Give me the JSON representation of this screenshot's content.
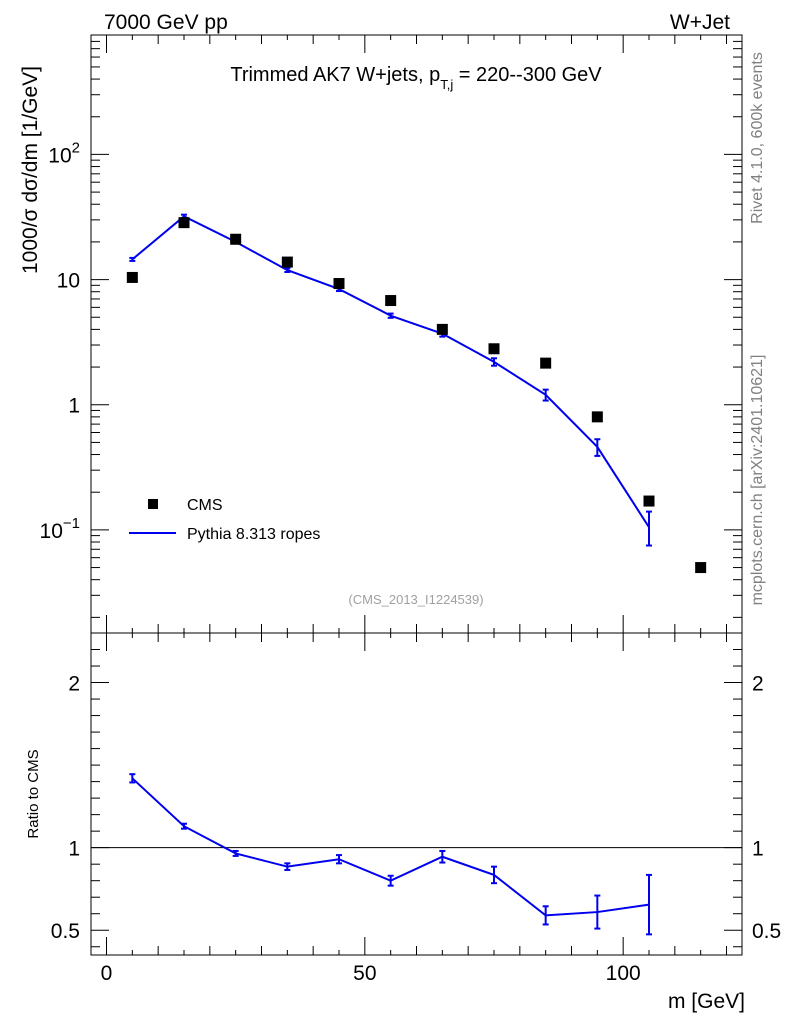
{
  "header": {
    "energy_label": "7000 GeV pp",
    "process_label": "W+Jet"
  },
  "side_labels": {
    "rivet": "Rivet 4.1.0,  600k events",
    "mcplots": "mcplots.cern.ch [arXiv:2401.10621]"
  },
  "reference_id": "(CMS_2013_I1224539)",
  "colors": {
    "mc": "#0000ee",
    "data": "#000000",
    "side_text": "#808080"
  },
  "chart_data": [
    {
      "type": "scatter",
      "panel": "main",
      "title_main": "Trimmed AK7 W+jets, p",
      "title_sub": "T,j",
      "title_tail": " = 220--300 GeV",
      "ylabel": "1000/σ  dσ/dm [1/GeV]",
      "yscale": "log",
      "ylim": [
        0.015,
        900
      ],
      "xlim": [
        -3,
        123
      ],
      "ytick_labels": [
        {
          "value": 100,
          "base": "10",
          "exp": "2"
        },
        {
          "value": 10,
          "base": "10",
          "exp": ""
        },
        {
          "value": 1,
          "base": "1",
          "exp": ""
        },
        {
          "value": 0.1,
          "base": "10",
          "exp": "−1"
        }
      ],
      "legend": [
        {
          "name": "CMS",
          "marker": "square"
        },
        {
          "name": "Pythia 8.313 ropes",
          "marker": "line"
        }
      ],
      "legend_position": "bottom-left",
      "series": [
        {
          "name": "CMS",
          "x": [
            5,
            15,
            25,
            35,
            45,
            55,
            65,
            75,
            85,
            95,
            105,
            115
          ],
          "values": [
            10.4,
            28.5,
            21.0,
            13.8,
            9.3,
            6.8,
            4.0,
            2.8,
            2.15,
            0.8,
            0.17,
            0.05
          ]
        },
        {
          "name": "Pythia 8.313 ropes",
          "x": [
            5,
            15,
            25,
            35,
            45,
            55,
            65,
            75,
            85,
            95,
            105
          ],
          "values": [
            14.5,
            32.0,
            20.0,
            11.9,
            8.4,
            5.15,
            3.7,
            2.2,
            1.2,
            0.46,
            0.105
          ],
          "err_low": [
            0.4,
            1.0,
            0.6,
            0.4,
            0.3,
            0.2,
            0.2,
            0.15,
            0.12,
            0.07,
            0.03
          ],
          "err_high": [
            0.4,
            1.0,
            0.6,
            0.4,
            0.3,
            0.2,
            0.2,
            0.15,
            0.12,
            0.07,
            0.035
          ]
        }
      ]
    },
    {
      "type": "line",
      "panel": "ratio",
      "ylabel": "Ratio to CMS",
      "xlabel": "m [GeV]",
      "ylim": [
        0.35,
        2.3
      ],
      "xlim": [
        -3,
        123
      ],
      "yticks": [
        0.5,
        1,
        2
      ],
      "ytick_labels": [
        "0.5",
        "1",
        "2"
      ],
      "xticks": [
        0,
        50,
        100
      ],
      "xtick_labels": [
        "0",
        "50",
        "100"
      ],
      "reference_line": 1,
      "series": [
        {
          "name": "Pythia 8.313 ropes",
          "x": [
            5,
            15,
            25,
            35,
            45,
            55,
            65,
            75,
            85,
            95,
            105
          ],
          "values": [
            1.42,
            1.13,
            0.965,
            0.885,
            0.93,
            0.8,
            0.945,
            0.835,
            0.59,
            0.61,
            0.655
          ],
          "err": [
            0.025,
            0.015,
            0.015,
            0.02,
            0.025,
            0.03,
            0.035,
            0.05,
            0.055,
            0.1,
            0.18
          ]
        }
      ]
    }
  ]
}
